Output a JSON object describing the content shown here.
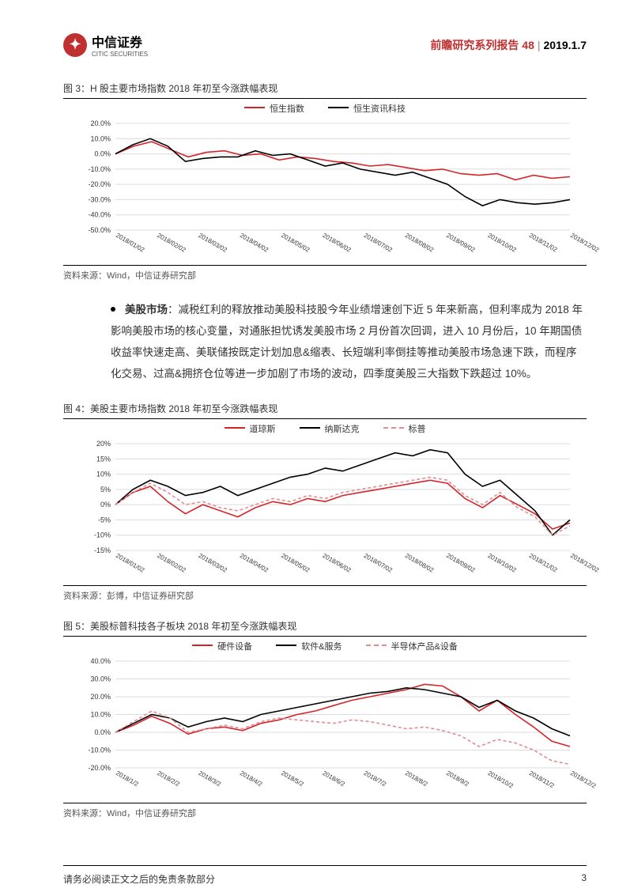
{
  "header": {
    "logo_cn": "中信证券",
    "logo_en": "CITIC SECURITIES",
    "series": "前瞻研究系列报告 48",
    "date": "2019.1.7"
  },
  "colors": {
    "red": "#d4252a",
    "black": "#000000",
    "pink": "#e28c92",
    "grid": "#dcdcdc",
    "subred": "#c13030"
  },
  "fig3": {
    "title": "图 3：H 股主要市场指数 2018 年初至今涨跌幅表现",
    "source": "资料来源：Wind，中信证券研究部",
    "type": "line",
    "x_labels": [
      "2018/01/02",
      "2018/02/02",
      "2018/03/02",
      "2018/04/02",
      "2018/05/02",
      "2018/06/02",
      "2018/07/02",
      "2018/08/02",
      "2018/09/02",
      "2018/10/02",
      "2018/11/02",
      "2018/12/02"
    ],
    "y_ticks": [
      "-50.0%",
      "-40.0%",
      "-30.0%",
      "-20.0%",
      "-10.0%",
      "0.0%",
      "10.0%",
      "20.0%"
    ],
    "y_min": -50,
    "y_max": 20,
    "legend": [
      {
        "label": "恒生指数",
        "color": "#d4252a",
        "dash": "0"
      },
      {
        "label": "恒生资讯科技",
        "color": "#000000",
        "dash": "0"
      }
    ],
    "series": {
      "hsi": [
        0,
        5,
        8,
        3,
        -2,
        1,
        2,
        -1,
        0,
        -4,
        -2,
        -3,
        -5,
        -6,
        -8,
        -7,
        -9,
        -11,
        -10,
        -13,
        -14,
        -13,
        -17,
        -14,
        -16,
        -15
      ],
      "hsit": [
        0,
        6,
        10,
        5,
        -5,
        -3,
        -2,
        -2,
        2,
        -1,
        0,
        -4,
        -8,
        -6,
        -10,
        -12,
        -14,
        -12,
        -16,
        -20,
        -28,
        -34,
        -30,
        -32,
        -33,
        -32,
        -30
      ]
    }
  },
  "body_text": {
    "label": "美股市场",
    "content": "：减税红利的释放推动美股科技股今年业绩增速创下近 5 年来新高，但利率成为 2018 年影响美股市场的核心变量，对通胀担忧诱发美股市场 2 月份首次回调，进入 10 月份后，10 年期国债收益率快速走高、美联储按既定计划加息&缩表、长短端利率倒挂等推动美股市场急速下跌，而程序化交易、过高&拥挤仓位等进一步加剧了市场的波动，四季度美股三大指数下跌超过 10%。"
  },
  "fig4": {
    "title": "图 4：美股主要市场指数 2018 年初至今涨跌幅表现",
    "source": "资料来源：彭博，中信证券研究部",
    "type": "line",
    "x_labels": [
      "2018/01/02",
      "2018/02/02",
      "2018/03/02",
      "2018/04/02",
      "2018/05/02",
      "2018/06/02",
      "2018/07/02",
      "2018/08/02",
      "2018/09/02",
      "2018/10/02",
      "2018/11/02",
      "2018/12/02"
    ],
    "y_ticks": [
      "-15%",
      "-10%",
      "-5%",
      "0%",
      "5%",
      "10%",
      "15%",
      "20%"
    ],
    "y_min": -15,
    "y_max": 20,
    "legend": [
      {
        "label": "道琼斯",
        "color": "#d4252a",
        "dash": "0"
      },
      {
        "label": "纳斯达克",
        "color": "#000000",
        "dash": "0"
      },
      {
        "label": "标普",
        "color": "#e28c92",
        "dash": "4 3"
      }
    ],
    "series": {
      "dji": [
        0,
        4,
        6,
        1,
        -3,
        0,
        -2,
        -4,
        -1,
        1,
        0,
        2,
        1,
        3,
        4,
        5,
        6,
        7,
        8,
        7,
        2,
        -1,
        3,
        0,
        -3,
        -8,
        -6
      ],
      "ixic": [
        0,
        5,
        8,
        6,
        3,
        4,
        6,
        3,
        5,
        7,
        9,
        10,
        12,
        11,
        13,
        15,
        17,
        16,
        18,
        17,
        10,
        6,
        8,
        3,
        -2,
        -10,
        -5
      ],
      "spx": [
        0,
        4,
        7,
        4,
        0,
        1,
        -1,
        -2,
        0,
        2,
        1,
        3,
        2,
        4,
        5,
        6,
        7,
        8,
        9,
        8,
        3,
        0,
        4,
        -1,
        -4,
        -10,
        -7
      ]
    }
  },
  "fig5": {
    "title": "图 5：美股标普科技各子板块 2018 年初至今涨跌幅表现",
    "source": "资料来源：Wind，中信证券研究部",
    "type": "line",
    "x_labels": [
      "2018/1/2",
      "2018/2/2",
      "2018/3/2",
      "2018/4/2",
      "2018/5/2",
      "2018/6/2",
      "2018/7/2",
      "2018/8/2",
      "2018/9/2",
      "2018/10/2",
      "2018/11/2",
      "2018/12/2"
    ],
    "y_ticks": [
      "-20.0%",
      "-10.0%",
      "0.0%",
      "10.0%",
      "20.0%",
      "30.0%",
      "40.0%"
    ],
    "y_min": -20,
    "y_max": 40,
    "legend": [
      {
        "label": "硬件设备",
        "color": "#d4252a",
        "dash": "0"
      },
      {
        "label": "软件&服务",
        "color": "#000000",
        "dash": "0"
      },
      {
        "label": "半导体产品&设备",
        "color": "#e28c92",
        "dash": "4 3"
      }
    ],
    "series": {
      "hw": [
        0,
        4,
        9,
        5,
        -1,
        2,
        3,
        1,
        5,
        7,
        10,
        12,
        15,
        18,
        20,
        22,
        24,
        27,
        26,
        20,
        12,
        18,
        10,
        3,
        -5,
        -8
      ],
      "sw": [
        0,
        5,
        10,
        8,
        3,
        6,
        8,
        6,
        10,
        12,
        14,
        16,
        18,
        20,
        22,
        23,
        25,
        24,
        22,
        20,
        14,
        18,
        12,
        8,
        2,
        -2
      ],
      "semi": [
        0,
        6,
        12,
        8,
        0,
        2,
        4,
        2,
        6,
        8,
        7,
        6,
        5,
        7,
        6,
        4,
        2,
        3,
        1,
        -2,
        -8,
        -4,
        -6,
        -10,
        -16,
        -18
      ]
    }
  },
  "footer": {
    "left": "请务必阅读正文之后的免责条款部分",
    "page": "3"
  }
}
